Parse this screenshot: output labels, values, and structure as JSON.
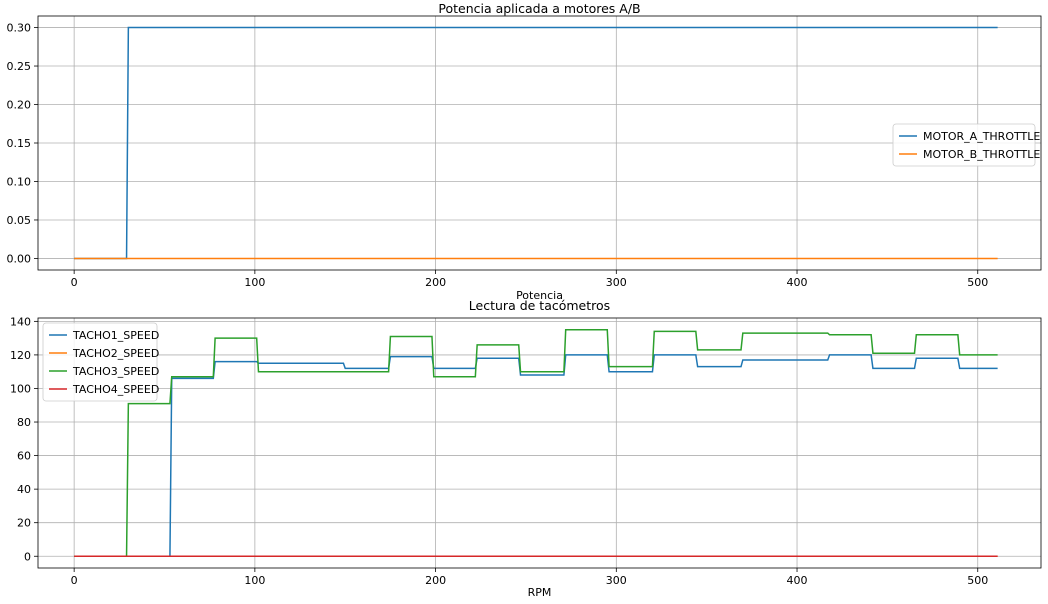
{
  "chart_data": [
    {
      "type": "line",
      "title": "Potencia aplicada a motores A/B",
      "xlabel": "Potencia",
      "ylabel": "",
      "xlim": [
        -20,
        535
      ],
      "ylim": [
        -0.015,
        0.315
      ],
      "xticks": [
        0,
        100,
        200,
        300,
        400,
        500
      ],
      "yticks": [
        0.0,
        0.05,
        0.1,
        0.15,
        0.2,
        0.25,
        0.3
      ],
      "ytick_labels": [
        "0.00",
        "0.05",
        "0.10",
        "0.15",
        "0.20",
        "0.25",
        "0.30"
      ],
      "grid": true,
      "legend": "center-right",
      "series": [
        {
          "name": "MOTOR_A_THROTTLE",
          "color": "#1f77b4",
          "points": [
            [
              0,
              0
            ],
            [
              29,
              0
            ],
            [
              30,
              0.3
            ],
            [
              511,
              0.3
            ]
          ]
        },
        {
          "name": "MOTOR_B_THROTTLE",
          "color": "#ff7f0e",
          "points": [
            [
              0,
              0
            ],
            [
              511,
              0
            ]
          ]
        }
      ]
    },
    {
      "type": "line",
      "title": "Lectura de tacómetros",
      "xlabel": "RPM",
      "ylabel": "",
      "xlim": [
        -20,
        535
      ],
      "ylim": [
        -7,
        142
      ],
      "xticks": [
        0,
        100,
        200,
        300,
        400,
        500
      ],
      "yticks": [
        0,
        20,
        40,
        60,
        80,
        100,
        120,
        140
      ],
      "ytick_labels": [
        "0",
        "20",
        "40",
        "60",
        "80",
        "100",
        "120",
        "140"
      ],
      "grid": true,
      "legend": "upper-left",
      "series": [
        {
          "name": "TACHO1_SPEED",
          "color": "#1f77b4",
          "points": [
            [
              0,
              0
            ],
            [
              53,
              0
            ],
            [
              54,
              106
            ],
            [
              77,
              106
            ],
            [
              78,
              116
            ],
            [
              101,
              116
            ],
            [
              102,
              115
            ],
            [
              149,
              115
            ],
            [
              150,
              112
            ],
            [
              174,
              112
            ],
            [
              175,
              119
            ],
            [
              198,
              119
            ],
            [
              199,
              112
            ],
            [
              222,
              112
            ],
            [
              223,
              118
            ],
            [
              246,
              118
            ],
            [
              247,
              108
            ],
            [
              271,
              108
            ],
            [
              272,
              120
            ],
            [
              295,
              120
            ],
            [
              296,
              110
            ],
            [
              320,
              110
            ],
            [
              321,
              120
            ],
            [
              344,
              120
            ],
            [
              345,
              113
            ],
            [
              369,
              113
            ],
            [
              370,
              117
            ],
            [
              417,
              117
            ],
            [
              418,
              120
            ],
            [
              441,
              120
            ],
            [
              442,
              112
            ],
            [
              465,
              112
            ],
            [
              466,
              118
            ],
            [
              489,
              118
            ],
            [
              490,
              112
            ],
            [
              511,
              112
            ]
          ]
        },
        {
          "name": "TACHO2_SPEED",
          "color": "#ff7f0e",
          "points": [
            [
              0,
              0
            ],
            [
              511,
              0
            ]
          ]
        },
        {
          "name": "TACHO3_SPEED",
          "color": "#2ca02c",
          "points": [
            [
              0,
              0
            ],
            [
              29,
              0
            ],
            [
              30,
              91
            ],
            [
              53,
              91
            ],
            [
              54,
              107
            ],
            [
              77,
              107
            ],
            [
              78,
              130
            ],
            [
              101,
              130
            ],
            [
              102,
              110
            ],
            [
              174,
              110
            ],
            [
              175,
              131
            ],
            [
              198,
              131
            ],
            [
              199,
              107
            ],
            [
              222,
              107
            ],
            [
              223,
              126
            ],
            [
              246,
              126
            ],
            [
              247,
              110
            ],
            [
              271,
              110
            ],
            [
              272,
              135
            ],
            [
              295,
              135
            ],
            [
              296,
              113
            ],
            [
              320,
              113
            ],
            [
              321,
              134
            ],
            [
              344,
              134
            ],
            [
              345,
              123
            ],
            [
              369,
              123
            ],
            [
              370,
              133
            ],
            [
              417,
              133
            ],
            [
              418,
              132
            ],
            [
              441,
              132
            ],
            [
              442,
              121
            ],
            [
              465,
              121
            ],
            [
              466,
              132
            ],
            [
              489,
              132
            ],
            [
              490,
              120
            ],
            [
              511,
              120
            ]
          ]
        },
        {
          "name": "TACHO4_SPEED",
          "color": "#d62728",
          "points": [
            [
              0,
              0
            ],
            [
              511,
              0
            ]
          ]
        }
      ]
    }
  ]
}
